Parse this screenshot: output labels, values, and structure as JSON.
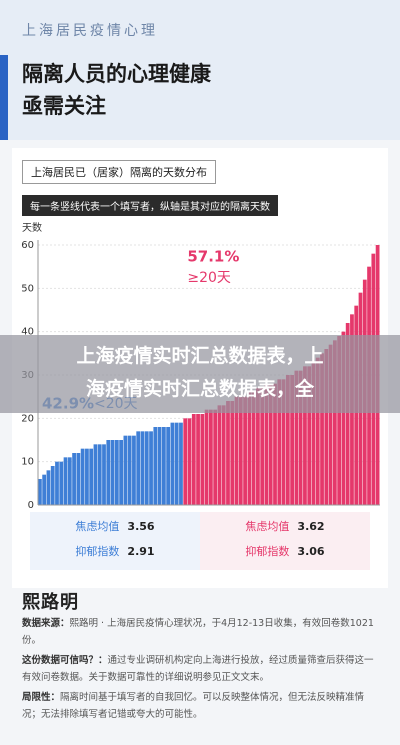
{
  "header": {
    "kicker": "上海居民疫情心理",
    "title_lines": [
      "隔离人员的心理健康",
      "亟需关注"
    ]
  },
  "chart_data": {
    "type": "bar",
    "title": "上海居民已（居家）隔离的天数分布",
    "subtitle": "每一条竖线代表一个填写者，纵轴是其对应的隔离天数",
    "y_label": "天数",
    "ylim": [
      0,
      60
    ],
    "yticks": [
      0,
      10,
      20,
      30,
      40,
      50,
      60
    ],
    "grid": true,
    "groups": [
      {
        "color": "#3f7fd6",
        "share_label": "42.9%",
        "range_label": "<20天",
        "values": [
          6,
          7,
          8,
          9,
          10,
          10,
          11,
          11,
          12,
          12,
          13,
          13,
          13,
          14,
          14,
          14,
          15,
          15,
          15,
          15,
          16,
          16,
          16,
          17,
          17,
          17,
          17,
          18,
          18,
          18,
          18,
          19,
          19,
          19
        ]
      },
      {
        "color": "#e5386b",
        "share_label": "57.1%",
        "range_label": "≥20天",
        "values": [
          20,
          20,
          21,
          21,
          21,
          22,
          22,
          22,
          23,
          23,
          24,
          24,
          25,
          25,
          25,
          26,
          26,
          27,
          27,
          28,
          28,
          28,
          29,
          29,
          30,
          30,
          31,
          31,
          32,
          32,
          33,
          34,
          35,
          36,
          37,
          38,
          39,
          40,
          42,
          44,
          46,
          49,
          52,
          55,
          58,
          60
        ]
      }
    ]
  },
  "overlay": {
    "lines": [
      "上海疫情实时汇总数据表，上",
      "海疫情实时汇总数据表，全"
    ]
  },
  "stats": [
    {
      "items": [
        {
          "label": "焦虑均值",
          "value": 3.56
        },
        {
          "label": "抑郁指数",
          "value": 2.91
        }
      ]
    },
    {
      "items": [
        {
          "label": "焦虑均值",
          "value": 3.62
        },
        {
          "label": "抑郁指数",
          "value": 3.06
        }
      ]
    }
  ],
  "footer": {
    "logo": "熙路明",
    "notes": [
      {
        "label": "数据来源：",
        "text": "熙路明 · 上海居民疫情心理状况，于4月12-13日收集，有效回卷数1021份。"
      },
      {
        "label": "这份数据可信吗？：",
        "text": "通过专业调研机构定向上海进行投放，经过质量筛查后获得这一有效问卷数据。关于数据可靠性的详细说明参见正文文末。"
      },
      {
        "label": "局限性：",
        "text": "隔离时间基于填写者的自我回忆。可以反映整体情况，但无法反映精准情况；无法排除填写者记错或夸大的可能性。"
      }
    ]
  }
}
